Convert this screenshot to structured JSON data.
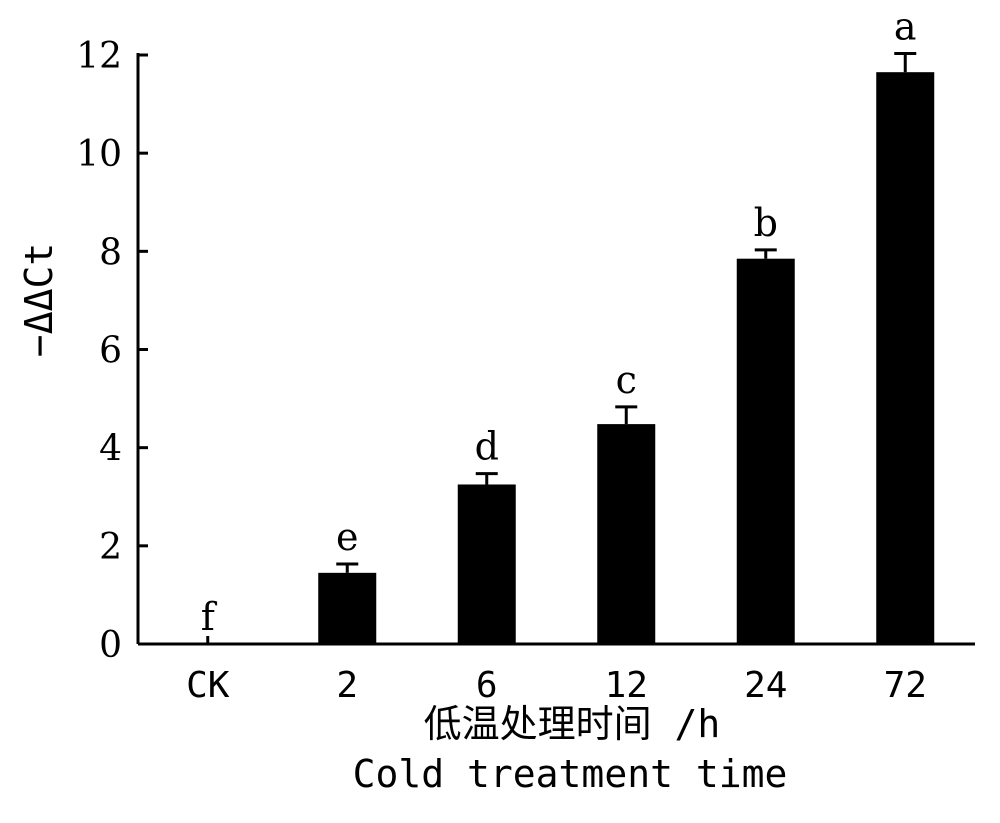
{
  "chart_data": {
    "type": "bar",
    "categories": [
      "CK",
      "2",
      "6",
      "12",
      "24",
      "72"
    ],
    "values": [
      0,
      1.45,
      3.25,
      4.48,
      7.85,
      11.65
    ],
    "errors": [
      0,
      0.18,
      0.22,
      0.35,
      0.18,
      0.38
    ],
    "significance": [
      "f",
      "e",
      "d",
      "c",
      "b",
      "a"
    ],
    "ylabel": "−ΔΔCt",
    "xlabel": "低温处理时间 /h",
    "xlabel_en": "Cold treatment time",
    "ylim": [
      0,
      12
    ],
    "yticks": [
      0,
      2,
      4,
      6,
      8,
      10,
      12
    ],
    "grid": false,
    "bar_color": "#000000"
  }
}
